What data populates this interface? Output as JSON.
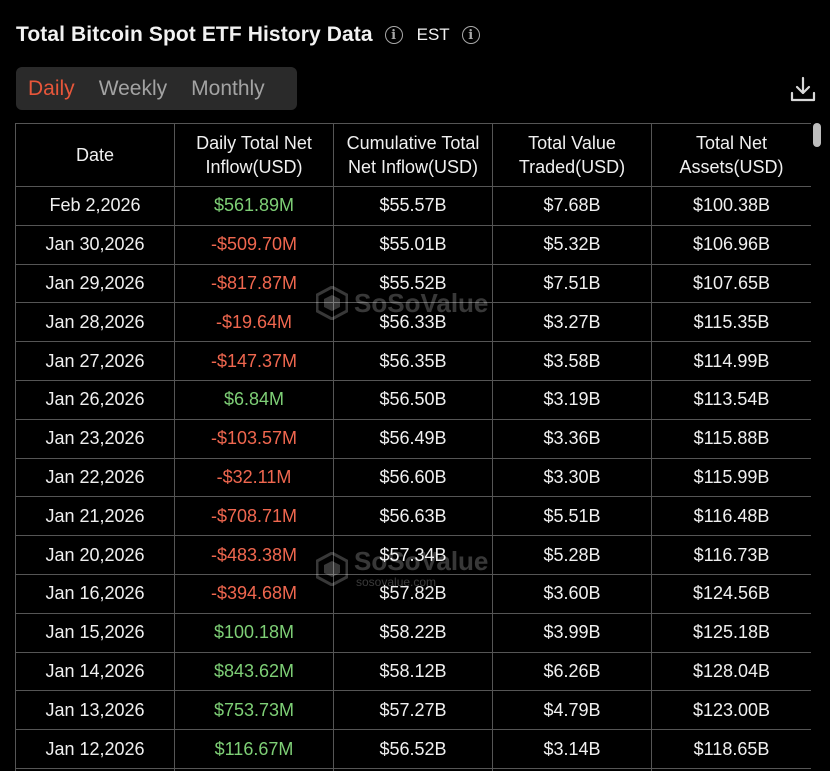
{
  "header": {
    "title": "Total Bitcoin Spot ETF History Data",
    "timezone": "EST"
  },
  "tabs": [
    {
      "label": "Daily",
      "active": true
    },
    {
      "label": "Weekly",
      "active": false
    },
    {
      "label": "Monthly",
      "active": false
    }
  ],
  "table": {
    "columns": [
      "Date",
      "Daily Total Net Inflow(USD)",
      "Cumulative Total Net Inflow(USD)",
      "Total Value Traded(USD)",
      "Total Net Assets(USD)"
    ],
    "rows": [
      {
        "date": "Feb 2,2026",
        "inflow": "$561.89M",
        "cumulative": "$55.57B",
        "traded": "$7.68B",
        "assets": "$100.38B",
        "sign": "pos"
      },
      {
        "date": "Jan 30,2026",
        "inflow": "-$509.70M",
        "cumulative": "$55.01B",
        "traded": "$5.32B",
        "assets": "$106.96B",
        "sign": "neg"
      },
      {
        "date": "Jan 29,2026",
        "inflow": "-$817.87M",
        "cumulative": "$55.52B",
        "traded": "$7.51B",
        "assets": "$107.65B",
        "sign": "neg"
      },
      {
        "date": "Jan 28,2026",
        "inflow": "-$19.64M",
        "cumulative": "$56.33B",
        "traded": "$3.27B",
        "assets": "$115.35B",
        "sign": "neg"
      },
      {
        "date": "Jan 27,2026",
        "inflow": "-$147.37M",
        "cumulative": "$56.35B",
        "traded": "$3.58B",
        "assets": "$114.99B",
        "sign": "neg"
      },
      {
        "date": "Jan 26,2026",
        "inflow": "$6.84M",
        "cumulative": "$56.50B",
        "traded": "$3.19B",
        "assets": "$113.54B",
        "sign": "pos"
      },
      {
        "date": "Jan 23,2026",
        "inflow": "-$103.57M",
        "cumulative": "$56.49B",
        "traded": "$3.36B",
        "assets": "$115.88B",
        "sign": "neg"
      },
      {
        "date": "Jan 22,2026",
        "inflow": "-$32.11M",
        "cumulative": "$56.60B",
        "traded": "$3.30B",
        "assets": "$115.99B",
        "sign": "neg"
      },
      {
        "date": "Jan 21,2026",
        "inflow": "-$708.71M",
        "cumulative": "$56.63B",
        "traded": "$5.51B",
        "assets": "$116.48B",
        "sign": "neg"
      },
      {
        "date": "Jan 20,2026",
        "inflow": "-$483.38M",
        "cumulative": "$57.34B",
        "traded": "$5.28B",
        "assets": "$116.73B",
        "sign": "neg"
      },
      {
        "date": "Jan 16,2026",
        "inflow": "-$394.68M",
        "cumulative": "$57.82B",
        "traded": "$3.60B",
        "assets": "$124.56B",
        "sign": "neg"
      },
      {
        "date": "Jan 15,2026",
        "inflow": "$100.18M",
        "cumulative": "$58.22B",
        "traded": "$3.99B",
        "assets": "$125.18B",
        "sign": "pos"
      },
      {
        "date": "Jan 14,2026",
        "inflow": "$843.62M",
        "cumulative": "$58.12B",
        "traded": "$6.26B",
        "assets": "$128.04B",
        "sign": "pos"
      },
      {
        "date": "Jan 13,2026",
        "inflow": "$753.73M",
        "cumulative": "$57.27B",
        "traded": "$4.79B",
        "assets": "$123.00B",
        "sign": "pos"
      },
      {
        "date": "Jan 12,2026",
        "inflow": "$116.67M",
        "cumulative": "$56.52B",
        "traded": "$3.14B",
        "assets": "$118.65B",
        "sign": "pos"
      },
      {
        "date": "",
        "inflow": "",
        "cumulative": "",
        "traded": "",
        "assets": "",
        "sign": "pos"
      }
    ]
  },
  "watermark": {
    "brand": "SoSoValue",
    "site": "sosovalue.com"
  },
  "icons": {
    "info": "info-icon",
    "download": "download-icon"
  },
  "colors": {
    "positive": "#7ecf76",
    "negative": "#f0674f",
    "active_tab": "#e8563a"
  }
}
